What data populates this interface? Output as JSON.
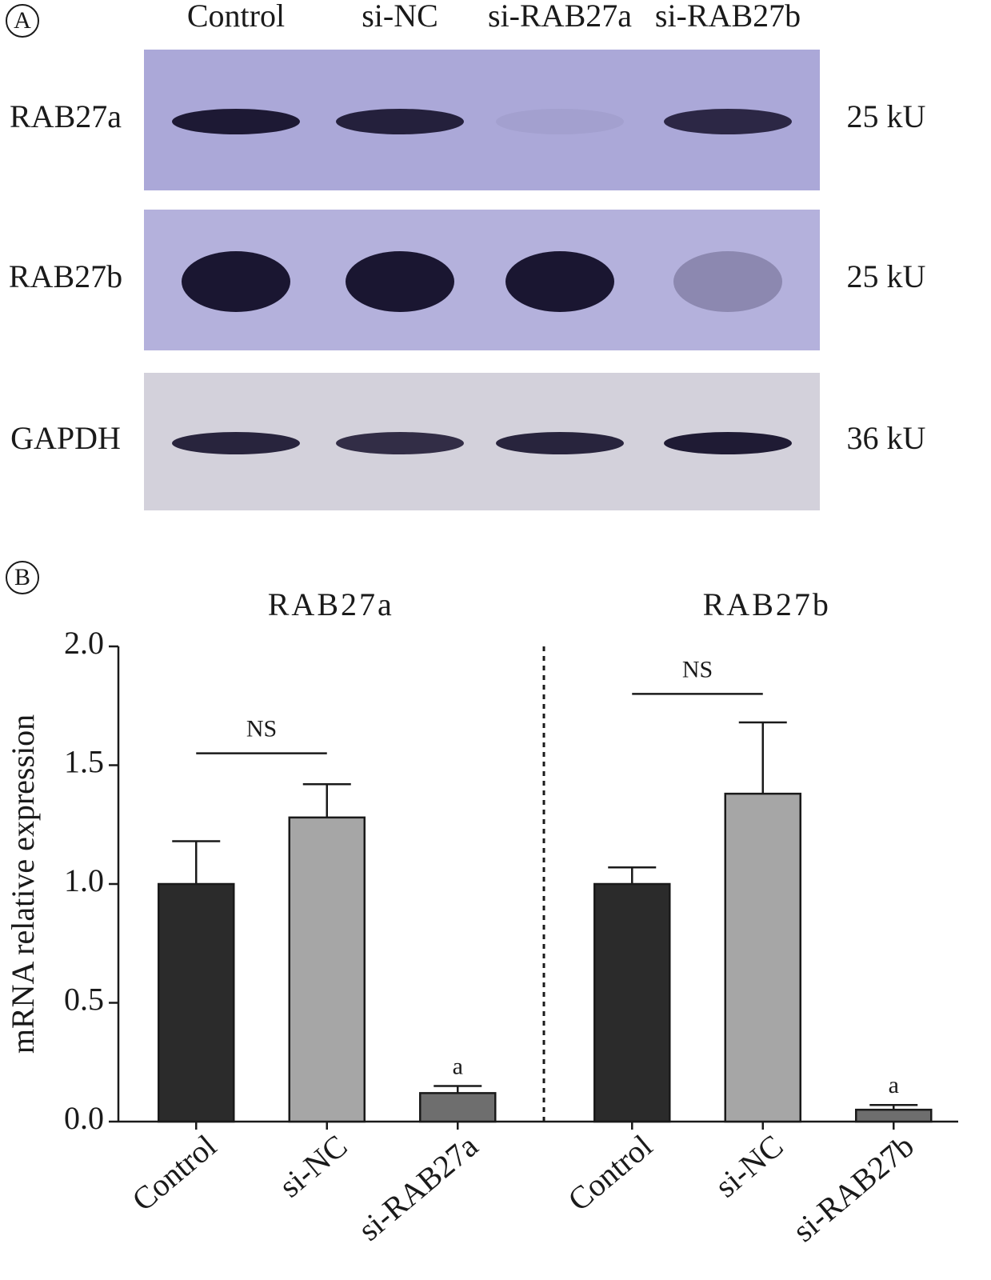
{
  "panel_a": {
    "label": "A",
    "lanes": [
      "Control",
      "si-NC",
      "si-RAB27a",
      "si-RAB27b"
    ],
    "rows": [
      {
        "protein": "RAB27a",
        "size": "25 kU"
      },
      {
        "protein": "RAB27b",
        "size": "25 kU"
      },
      {
        "protein": "GAPDH",
        "size": "36 kU"
      }
    ]
  },
  "panel_b": {
    "label": "B"
  },
  "chart_data": [
    {
      "type": "bar",
      "title": "RAB27a",
      "ylabel": "mRNA relative expression",
      "categories": [
        "Control",
        "si-NC",
        "si-RAB27a"
      ],
      "values": [
        1.0,
        1.28,
        0.12
      ],
      "errors": [
        0.18,
        0.14,
        0.03
      ],
      "colors": [
        "#2b2b2b",
        "#a6a6a6",
        "#6e6e6e"
      ],
      "bar_labels": [
        null,
        null,
        "a"
      ],
      "bracket": {
        "label": "NS",
        "y": 1.55
      },
      "ylim": [
        0,
        2.0
      ],
      "yticks": [
        {
          "value": 0,
          "label": "0.0"
        },
        {
          "value": 0.5,
          "label": "0.5"
        },
        {
          "value": 1,
          "label": "1.0"
        },
        {
          "value": 1.5,
          "label": "1.5"
        },
        {
          "value": 2,
          "label": "2.0"
        }
      ]
    },
    {
      "type": "bar",
      "title": "RAB27b",
      "categories": [
        "Control",
        "si-NC",
        "si-RAB27b"
      ],
      "values": [
        1.0,
        1.38,
        0.05
      ],
      "errors": [
        0.07,
        0.3,
        0.02
      ],
      "colors": [
        "#2b2b2b",
        "#a6a6a6",
        "#6e6e6e"
      ],
      "bar_labels": [
        null,
        null,
        "a"
      ],
      "bracket": {
        "label": "NS",
        "y": 1.8
      },
      "ylim": [
        0,
        2.0
      ]
    }
  ]
}
